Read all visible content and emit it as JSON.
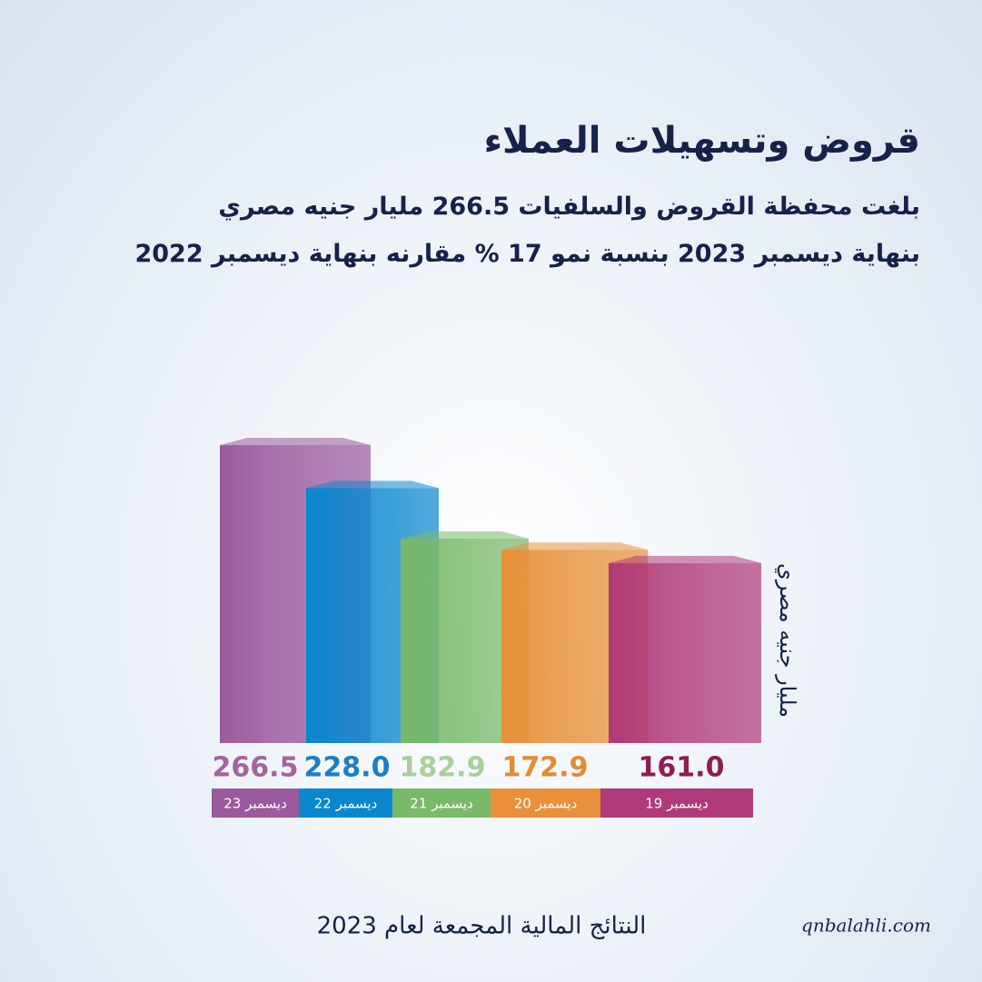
{
  "chart_data": {
    "type": "bar",
    "title": "قروض وتسهيلات العملاء",
    "subtitle": [
      "بلغت محفظة القروض والسلفيات 266.5 مليار جنيه مصري",
      "بنهاية ديسمبر 2023 بنسبة نمو 17 % مقارنه بنهاية ديسمبر 2022"
    ],
    "y_label": "مليار جنيه مصري",
    "categories": [
      "ديسمبر 23",
      "ديسمبر 22",
      "ديسمبر 21",
      "ديسمبر 20",
      "ديسمبر 19"
    ],
    "values": [
      266.5,
      228.0,
      182.9,
      172.9,
      161.0
    ],
    "value_labels": [
      "266.5",
      "228.0",
      "182.9",
      "172.9",
      "161.0"
    ],
    "colors": [
      "#9b5a9e",
      "#0a86cf",
      "#79b96a",
      "#e8913a",
      "#b03a79"
    ],
    "value_label_colors": [
      "#a2659f",
      "#1b7fc4",
      "#a9cf9b",
      "#e38c33",
      "#8e1d55"
    ],
    "footer": "النتائج المالية المجمعة لعام 2023",
    "website": "qnbalahli.com"
  }
}
